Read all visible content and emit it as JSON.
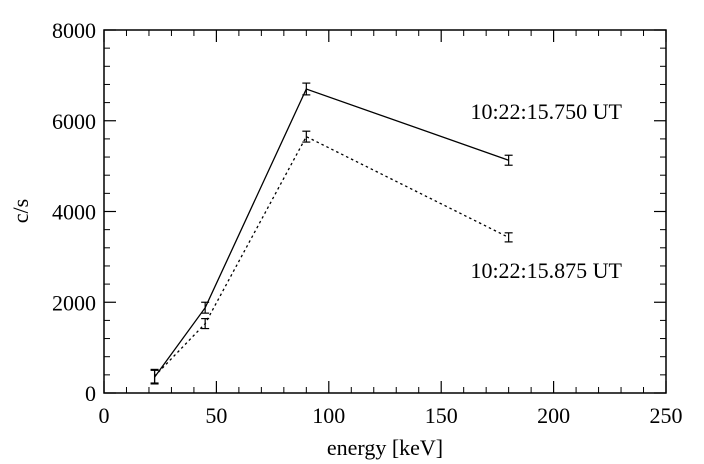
{
  "chart_data": {
    "type": "line",
    "title": "",
    "xlabel": "energy [keV]",
    "ylabel": "c/s",
    "xlim": [
      0,
      250
    ],
    "ylim": [
      0,
      8000
    ],
    "xticks": [
      "0",
      "50",
      "100",
      "150",
      "200",
      "250"
    ],
    "yticks": [
      "0",
      "2000",
      "4000",
      "6000",
      "8000"
    ],
    "grid": false,
    "series": [
      {
        "label": "10:22:15.750 UT",
        "style": "solid",
        "x": [
          22.5,
          45,
          90,
          180
        ],
        "y": [
          350,
          1880,
          6700,
          5130
        ],
        "err": [
          150,
          120,
          130,
          110
        ]
      },
      {
        "label": "10:22:15.875 UT",
        "style": "dotted",
        "x": [
          22.5,
          45,
          90,
          180
        ],
        "y": [
          370,
          1530,
          5650,
          3430
        ],
        "err": [
          150,
          110,
          120,
          100
        ]
      }
    ]
  }
}
